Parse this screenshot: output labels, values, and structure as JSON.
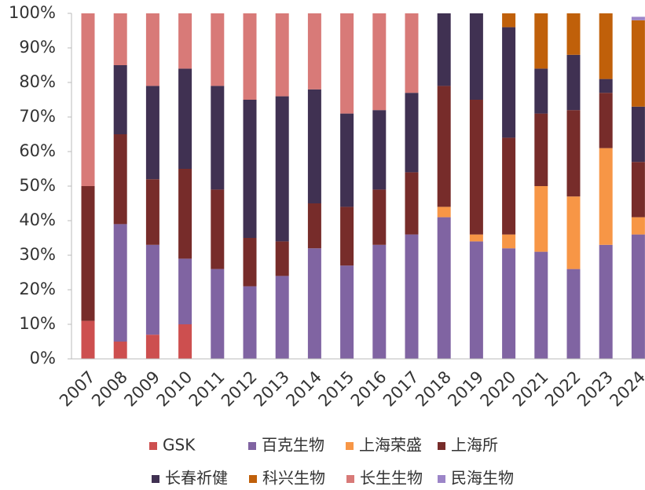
{
  "chart_data": {
    "type": "stacked_bar_100",
    "categories": [
      "2007",
      "2008",
      "2009",
      "2010",
      "2011",
      "2012",
      "2013",
      "2014",
      "2015",
      "2016",
      "2017",
      "2018",
      "2019",
      "2020",
      "2021",
      "2022",
      "2023",
      "2024"
    ],
    "series": [
      {
        "name": "GSK",
        "color": "#cd4f4f",
        "values": [
          11,
          5,
          7,
          10,
          0,
          0,
          0,
          0,
          0,
          0,
          0,
          0,
          0,
          0,
          0,
          0,
          0,
          0
        ]
      },
      {
        "name": "百克生物",
        "color": "#8064a2",
        "values": [
          0,
          34,
          26,
          19,
          26,
          21,
          24,
          32,
          27,
          33,
          36,
          41,
          34,
          32,
          31,
          26,
          33,
          36
        ]
      },
      {
        "name": "上海荣盛",
        "color": "#f79646",
        "values": [
          0,
          0,
          0,
          0,
          0,
          0,
          0,
          0,
          0,
          0,
          0,
          3,
          2,
          4,
          19,
          21,
          28,
          5
        ]
      },
      {
        "name": "上海所",
        "color": "#772c2a",
        "values": [
          39,
          26,
          19,
          26,
          23,
          14,
          10,
          13,
          17,
          16,
          18,
          35,
          39,
          28,
          21,
          25,
          16,
          16
        ]
      },
      {
        "name": "长春祈健",
        "color": "#403152",
        "values": [
          0,
          20,
          27,
          29,
          30,
          40,
          42,
          33,
          27,
          23,
          23,
          21,
          25,
          32,
          13,
          16,
          4,
          16
        ]
      },
      {
        "name": "科兴生物",
        "color": "#c0600a",
        "values": [
          0,
          0,
          0,
          0,
          0,
          0,
          0,
          0,
          0,
          0,
          0,
          0,
          0,
          4,
          16,
          12,
          19,
          25
        ]
      },
      {
        "name": "长生生物",
        "color": "#d87a78",
        "values": [
          50,
          15,
          21,
          16,
          21,
          25,
          24,
          22,
          29,
          28,
          23,
          0,
          0,
          0,
          0,
          0,
          0,
          0
        ]
      },
      {
        "name": "民海生物",
        "color": "#9c85c8",
        "values": [
          0,
          0,
          0,
          0,
          0,
          0,
          0,
          0,
          0,
          0,
          0,
          0,
          0,
          0,
          0,
          0,
          0,
          1
        ]
      }
    ],
    "ylim": [
      0,
      100
    ],
    "yticks": [
      {
        "value": 0,
        "label": "0%"
      },
      {
        "value": 10,
        "label": "10%"
      },
      {
        "value": 20,
        "label": "20%"
      },
      {
        "value": 30,
        "label": "30%"
      },
      {
        "value": 40,
        "label": "40%"
      },
      {
        "value": 50,
        "label": "50%"
      },
      {
        "value": 60,
        "label": "60%"
      },
      {
        "value": 70,
        "label": "70%"
      },
      {
        "value": 80,
        "label": "80%"
      },
      {
        "value": 90,
        "label": "90%"
      },
      {
        "value": 100,
        "label": "100%"
      }
    ],
    "grid": false
  }
}
